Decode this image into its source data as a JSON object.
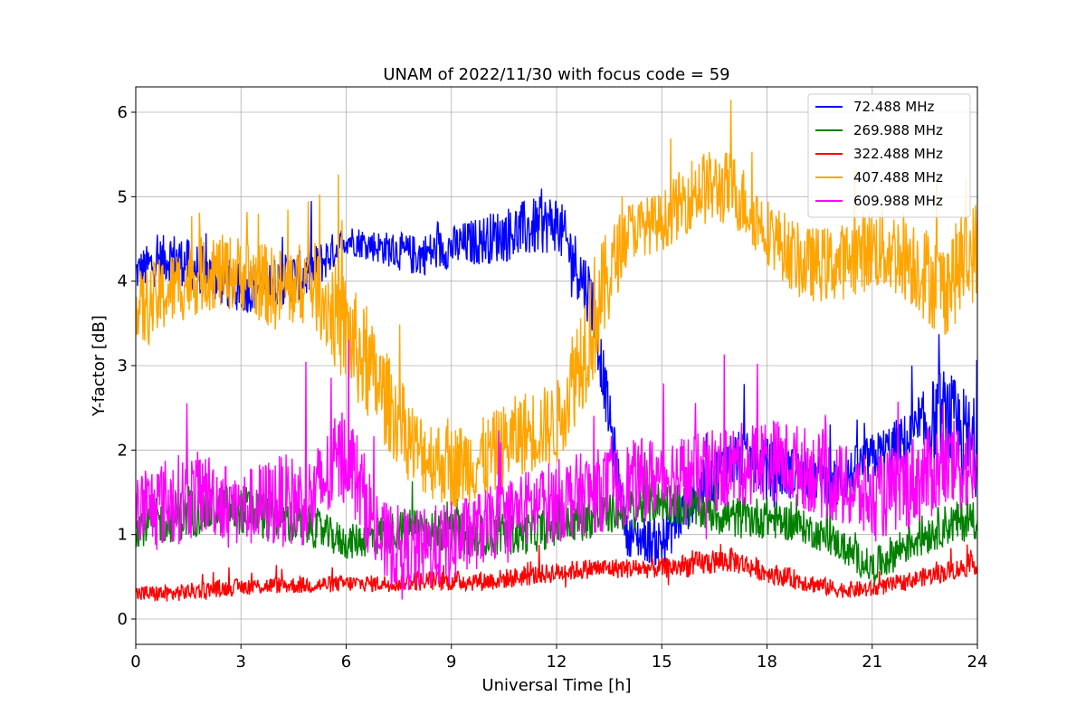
{
  "chart_data": {
    "type": "line",
    "title": "UNAM of 2022/11/30 with focus code = 59",
    "xlabel": "Universal Time [h]",
    "ylabel": "Y-factor [dB]",
    "xlim": [
      0,
      24
    ],
    "ylim": [
      -0.3,
      6.3
    ],
    "xticks": [
      0,
      3,
      6,
      9,
      12,
      15,
      18,
      21,
      24
    ],
    "yticks": [
      0,
      1,
      2,
      3,
      4,
      5,
      6
    ],
    "grid": true,
    "legend_position": "top-right",
    "x": [
      0,
      1,
      2,
      3,
      4,
      5,
      6,
      7,
      8,
      9,
      10,
      11,
      12,
      13,
      14,
      15,
      16,
      17,
      18,
      19,
      20,
      21,
      22,
      23,
      24
    ],
    "series": [
      {
        "name": " 72.488 MHz",
        "color": "#0000ff",
        "values": [
          4.1,
          4.3,
          4.1,
          3.9,
          4.0,
          4.1,
          4.5,
          4.4,
          4.3,
          4.4,
          4.5,
          4.6,
          4.7,
          3.8,
          1.0,
          0.9,
          1.5,
          1.9,
          1.8,
          1.7,
          1.6,
          1.9,
          2.1,
          2.4,
          2.0
        ],
        "noise": [
          0.25,
          0.3,
          0.3,
          0.3,
          0.3,
          0.3,
          0.18,
          0.2,
          0.25,
          0.25,
          0.3,
          0.35,
          0.35,
          0.4,
          0.25,
          0.3,
          0.3,
          0.35,
          0.35,
          0.3,
          0.3,
          0.3,
          0.35,
          0.6,
          0.6
        ]
      },
      {
        "name": "269.988 MHz",
        "color": "#008000",
        "values": [
          1.1,
          1.2,
          1.3,
          1.3,
          1.2,
          1.1,
          0.9,
          1.0,
          1.1,
          1.0,
          1.0,
          1.0,
          1.1,
          1.2,
          1.3,
          1.4,
          1.3,
          1.2,
          1.2,
          1.1,
          0.9,
          0.6,
          0.9,
          1.1,
          1.2
        ],
        "noise": [
          0.25,
          0.3,
          0.3,
          0.3,
          0.3,
          0.25,
          0.2,
          0.25,
          0.25,
          0.25,
          0.25,
          0.25,
          0.25,
          0.25,
          0.25,
          0.25,
          0.25,
          0.25,
          0.25,
          0.2,
          0.2,
          0.2,
          0.25,
          0.25,
          0.25
        ]
      },
      {
        "name": "322.488 MHz",
        "color": "#ff0000",
        "values": [
          0.3,
          0.3,
          0.35,
          0.38,
          0.4,
          0.4,
          0.42,
          0.42,
          0.45,
          0.45,
          0.45,
          0.5,
          0.55,
          0.6,
          0.6,
          0.6,
          0.65,
          0.7,
          0.55,
          0.45,
          0.35,
          0.35,
          0.45,
          0.55,
          0.65
        ],
        "noise": [
          0.1,
          0.1,
          0.1,
          0.1,
          0.1,
          0.1,
          0.1,
          0.1,
          0.12,
          0.12,
          0.12,
          0.12,
          0.12,
          0.12,
          0.12,
          0.12,
          0.15,
          0.15,
          0.12,
          0.12,
          0.1,
          0.1,
          0.1,
          0.12,
          0.12
        ]
      },
      {
        "name": "407.488 MHz",
        "color": "#ffa500",
        "values": [
          3.6,
          3.9,
          4.1,
          4.1,
          3.9,
          4.0,
          3.4,
          2.7,
          2.0,
          1.8,
          1.9,
          2.2,
          2.3,
          3.5,
          4.6,
          4.7,
          5.1,
          5.1,
          4.6,
          4.2,
          4.2,
          4.4,
          4.3,
          3.9,
          4.4
        ],
        "noise": [
          0.5,
          0.45,
          0.45,
          0.45,
          0.5,
          0.5,
          0.7,
          0.6,
          0.5,
          0.5,
          0.5,
          0.5,
          0.5,
          0.8,
          0.35,
          0.35,
          0.45,
          0.45,
          0.4,
          0.45,
          0.45,
          0.5,
          0.55,
          0.6,
          0.6
        ]
      },
      {
        "name": "609.988 MHz",
        "color": "#ff00ff",
        "values": [
          1.3,
          1.4,
          1.5,
          1.3,
          1.4,
          1.4,
          2.0,
          0.9,
          0.8,
          0.9,
          1.1,
          1.3,
          1.4,
          1.5,
          1.6,
          1.7,
          1.7,
          1.8,
          1.9,
          1.8,
          1.6,
          1.4,
          1.6,
          1.8,
          1.8
        ],
        "noise": [
          0.45,
          0.55,
          0.5,
          0.45,
          0.55,
          0.55,
          0.6,
          0.5,
          0.5,
          0.5,
          0.45,
          0.45,
          0.5,
          0.5,
          0.5,
          0.5,
          0.5,
          0.5,
          0.5,
          0.5,
          0.5,
          0.5,
          0.55,
          0.55,
          0.55
        ]
      }
    ]
  }
}
